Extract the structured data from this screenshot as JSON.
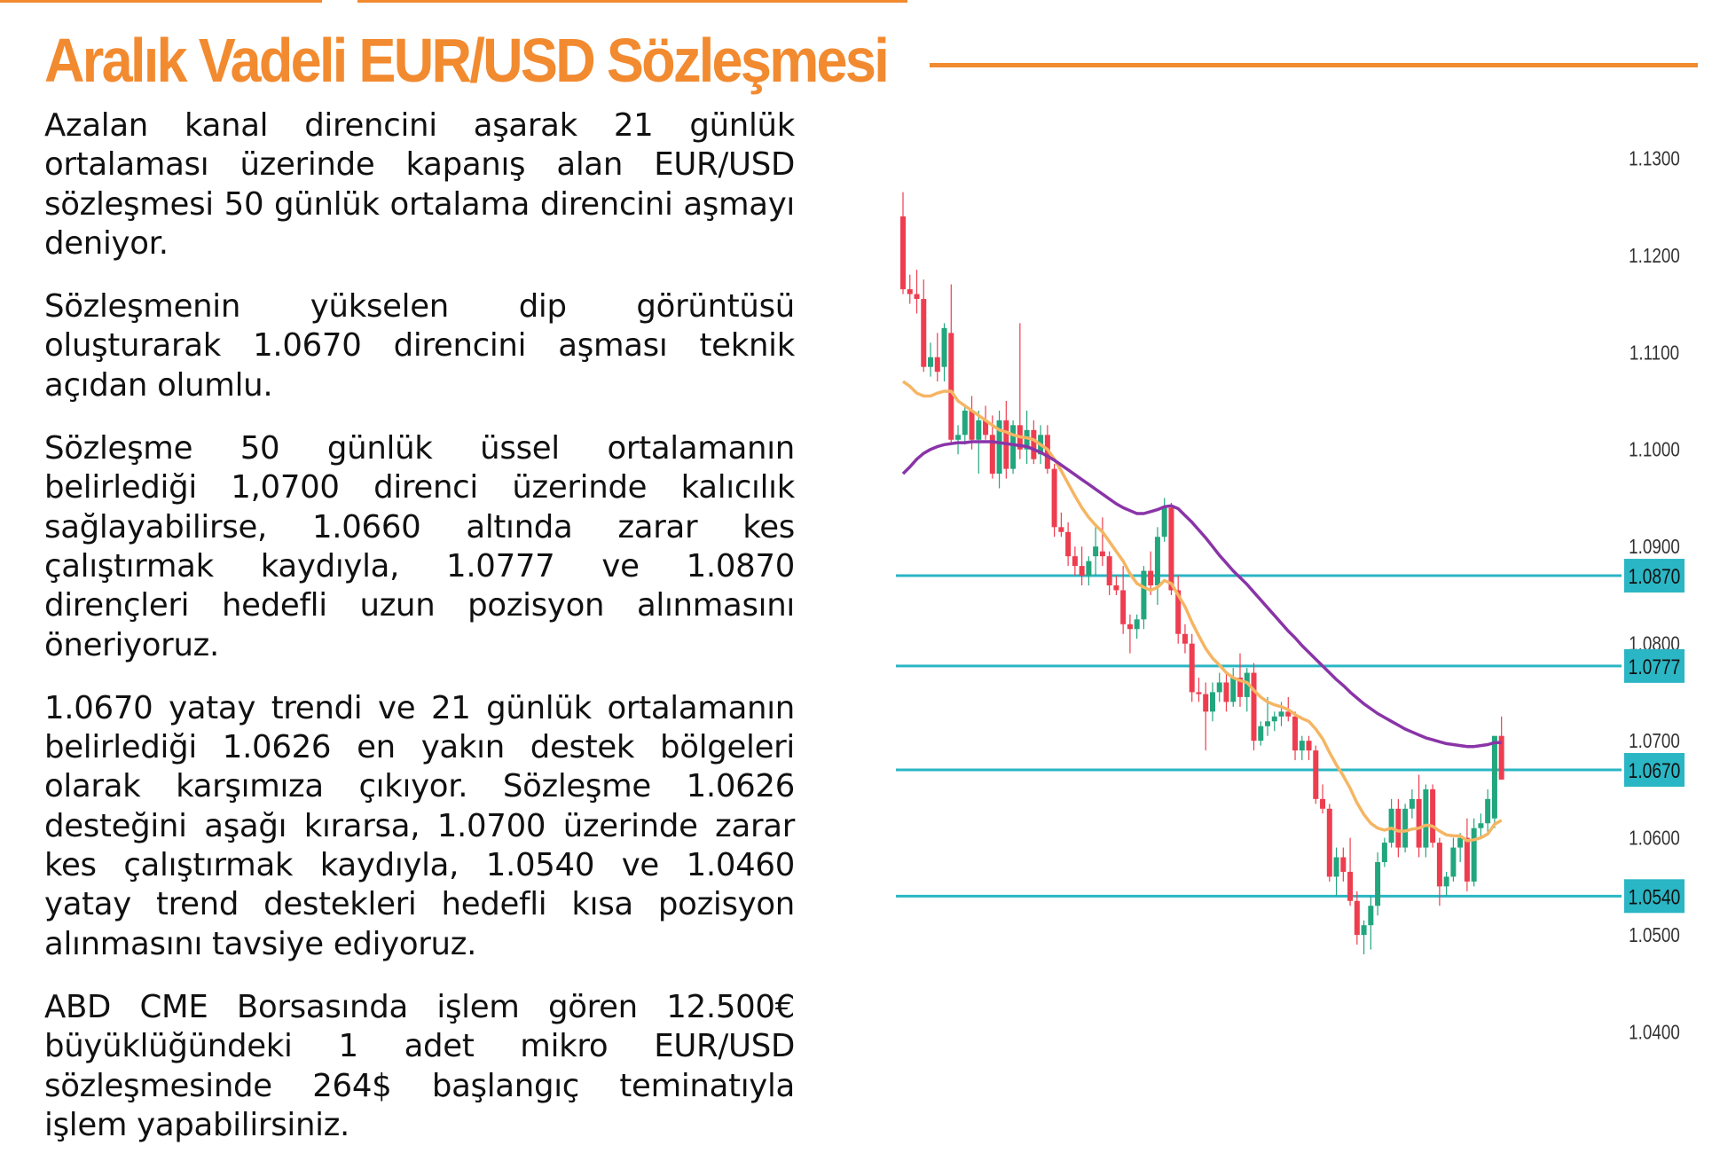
{
  "header": {
    "title": "Aralık Vadeli EUR/USD Sözleşmesi",
    "accent_color": "#f28a30"
  },
  "paragraphs": [
    "Azalan kanal direncini aşarak 21 günlük ortalaması üzerinde kapanış alan EUR/USD sözleşmesi 50 günlük ortalama direncini aşmayı deniyor.",
    "Sözleşmenin yükselen dip görüntüsü oluşturarak 1.0670 direncini aşması teknik açıdan olumlu.",
    "Sözleşme 50 günlük üssel ortalamanın belirlediği 1,0700 direnci üzerinde kalıcılık sağlayabilirse, 1.0660 altında zarar kes çalıştırmak kaydıyla, 1.0777 ve 1.0870 dirençleri hedefli uzun pozisyon alınmasını öneriyoruz.",
    "1.0670 yatay trendi ve 21 günlük ortalamanın belirlediği 1.0626 en yakın destek bölgeleri olarak karşımıza çıkıyor. Sözleşme 1.0626 desteğini aşağı kırarsa, 1.0700 üzerinde zarar kes çalıştırmak kaydıyla, 1.0540 ve 1.0460 yatay trend destekleri hedefli kısa pozisyon alınmasını tavsiye ediyoruz.",
    "ABD CME Borsasında işlem gören 12.500€ büyüklüğündeki 1 adet mikro EUR/USD sözleşmesinde 264$ başlangıç teminatıyla işlem yapabilirsiniz."
  ],
  "chart_data": {
    "type": "candlestick",
    "ylim": [
      1.0385,
      1.1335
    ],
    "y_ticks": [
      "1.1300",
      "1.1200",
      "1.1100",
      "1.1000",
      "1.0900",
      "1.0800",
      "1.0700",
      "1.0600",
      "1.0500",
      "1.0400"
    ],
    "levels": [
      {
        "value": 1.087,
        "label": "1.0870"
      },
      {
        "value": 1.0777,
        "label": "1.0777"
      },
      {
        "value": 1.067,
        "label": "1.0670"
      },
      {
        "value": 1.054,
        "label": "1.0540"
      }
    ],
    "colors": {
      "up": "#22a67e",
      "down": "#ee3d4f",
      "ema21": "#f5b563",
      "ema50": "#8a34a8",
      "level": "#2ab6c4",
      "label_bg": "#2ab6c4"
    },
    "candles": [
      [
        1.124,
        1.1265,
        1.116,
        1.1165
      ],
      [
        1.1165,
        1.118,
        1.115,
        1.116
      ],
      [
        1.116,
        1.1185,
        1.114,
        1.1155
      ],
      [
        1.1155,
        1.1175,
        1.108,
        1.1085
      ],
      [
        1.1085,
        1.111,
        1.1075,
        1.1095
      ],
      [
        1.1095,
        1.112,
        1.107,
        1.108
      ],
      [
        1.1085,
        1.113,
        1.107,
        1.1125
      ],
      [
        1.112,
        1.117,
        1.1005,
        1.101
      ],
      [
        1.101,
        1.1025,
        1.0995,
        1.1015
      ],
      [
        1.1015,
        1.1045,
        1.1005,
        1.104
      ],
      [
        1.104,
        1.1055,
        1.1,
        1.101
      ],
      [
        1.101,
        1.104,
        1.0975,
        1.103
      ],
      [
        1.103,
        1.1045,
        1.101,
        1.1015
      ],
      [
        1.1015,
        1.1035,
        1.097,
        1.0975
      ],
      [
        1.0975,
        1.104,
        1.096,
        1.103
      ],
      [
        1.103,
        1.105,
        1.097,
        1.098
      ],
      [
        1.098,
        1.103,
        1.0975,
        1.1025
      ],
      [
        1.1025,
        1.113,
        1.099,
        1.1
      ],
      [
        1.1,
        1.104,
        1.0985,
        1.102
      ],
      [
        1.102,
        1.103,
        1.0985,
        1.099
      ],
      [
        1.0995,
        1.1025,
        1.0985,
        1.1015
      ],
      [
        1.1015,
        1.1025,
        1.0975,
        1.098
      ],
      [
        1.098,
        1.0985,
        1.091,
        1.092
      ],
      [
        1.092,
        1.0935,
        1.091,
        1.0915
      ],
      [
        1.0915,
        1.0925,
        1.088,
        1.089
      ],
      [
        1.089,
        1.09,
        1.087,
        1.088
      ],
      [
        1.088,
        1.09,
        1.086,
        1.087
      ],
      [
        1.087,
        1.089,
        1.086,
        1.0885
      ],
      [
        1.089,
        1.092,
        1.087,
        1.09
      ],
      [
        1.0895,
        1.093,
        1.088,
        1.089
      ],
      [
        1.089,
        1.0895,
        1.085,
        1.086
      ],
      [
        1.086,
        1.087,
        1.085,
        1.0855
      ],
      [
        1.0855,
        1.088,
        1.081,
        1.082
      ],
      [
        1.082,
        1.083,
        1.079,
        1.0815
      ],
      [
        1.0815,
        1.083,
        1.0805,
        1.0825
      ],
      [
        1.0825,
        1.088,
        1.0815,
        1.0875
      ],
      [
        1.0875,
        1.0895,
        1.085,
        1.086
      ],
      [
        1.086,
        1.092,
        1.084,
        1.091
      ],
      [
        1.091,
        1.095,
        1.0905,
        1.094
      ],
      [
        1.094,
        1.0945,
        1.085,
        1.0855
      ],
      [
        1.0855,
        1.087,
        1.08,
        1.081
      ],
      [
        1.081,
        1.082,
        1.079,
        1.08
      ],
      [
        1.08,
        1.081,
        1.074,
        1.075
      ],
      [
        1.075,
        1.0765,
        1.074,
        1.0748
      ],
      [
        1.0748,
        1.076,
        1.069,
        1.073
      ],
      [
        1.073,
        1.076,
        1.072,
        1.075
      ],
      [
        1.075,
        1.077,
        1.074,
        1.076
      ],
      [
        1.076,
        1.077,
        1.073,
        1.074
      ],
      [
        1.074,
        1.0775,
        1.0735,
        1.0765
      ],
      [
        1.0765,
        1.079,
        1.0735,
        1.0745
      ],
      [
        1.0745,
        1.0775,
        1.073,
        1.077
      ],
      [
        1.077,
        1.078,
        1.069,
        1.07
      ],
      [
        1.07,
        1.072,
        1.0695,
        1.0715
      ],
      [
        1.0715,
        1.0745,
        1.0705,
        1.072
      ],
      [
        1.072,
        1.073,
        1.071,
        1.0725
      ],
      [
        1.0725,
        1.074,
        1.0715,
        1.073
      ],
      [
        1.073,
        1.0745,
        1.072,
        1.0725
      ],
      [
        1.0725,
        1.073,
        1.068,
        1.069
      ],
      [
        1.069,
        1.0705,
        1.068,
        1.07
      ],
      [
        1.07,
        1.0705,
        1.068,
        1.069
      ],
      [
        1.069,
        1.0695,
        1.0635,
        1.064
      ],
      [
        1.064,
        1.0655,
        1.0625,
        1.063
      ],
      [
        1.063,
        1.0635,
        1.0555,
        1.056
      ],
      [
        1.056,
        1.059,
        1.054,
        1.058
      ],
      [
        1.058,
        1.059,
        1.0555,
        1.0565
      ],
      [
        1.0565,
        1.06,
        1.053,
        1.0535
      ],
      [
        1.0535,
        1.0545,
        1.049,
        1.05
      ],
      [
        1.05,
        1.0515,
        1.048,
        1.051
      ],
      [
        1.051,
        1.054,
        1.0485,
        1.053
      ],
      [
        1.053,
        1.0585,
        1.052,
        1.0575
      ],
      [
        1.0575,
        1.06,
        1.057,
        1.0595
      ],
      [
        1.0595,
        1.064,
        1.059,
        1.063
      ],
      [
        1.063,
        1.064,
        1.058,
        1.059
      ],
      [
        1.059,
        1.0635,
        1.0585,
        1.063
      ],
      [
        1.063,
        1.065,
        1.062,
        1.064
      ],
      [
        1.064,
        1.0665,
        1.058,
        1.059
      ],
      [
        1.059,
        1.0655,
        1.058,
        1.065
      ],
      [
        1.065,
        1.0655,
        1.059,
        1.0595
      ],
      [
        1.0595,
        1.06,
        1.053,
        1.055
      ],
      [
        1.055,
        1.0565,
        1.054,
        1.056
      ],
      [
        1.056,
        1.06,
        1.0555,
        1.059
      ],
      [
        1.059,
        1.0605,
        1.0575,
        1.06
      ],
      [
        1.06,
        1.062,
        1.0545,
        1.0555
      ],
      [
        1.0555,
        1.062,
        1.055,
        1.061
      ],
      [
        1.061,
        1.0625,
        1.06,
        1.0615
      ],
      [
        1.0615,
        1.065,
        1.0605,
        1.064
      ],
      [
        1.062,
        1.07,
        1.061,
        1.0705
      ],
      [
        1.0705,
        1.0725,
        1.066,
        1.066
      ]
    ],
    "ema21": [
      1.107,
      1.1065,
      1.1058,
      1.1055,
      1.1055,
      1.1058,
      1.106,
      1.106,
      1.105,
      1.1045,
      1.104,
      1.1035,
      1.103,
      1.1025,
      1.102,
      1.1018,
      1.1015,
      1.1013,
      1.1012,
      1.101,
      1.1005,
      1.1,
      1.099,
      1.0978,
      1.0965,
      1.0952,
      1.094,
      1.093,
      1.0922,
      1.0915,
      1.0905,
      1.0895,
      1.0885,
      1.0872,
      1.0862,
      1.0858,
      1.0855,
      1.0858,
      1.0865,
      1.0862,
      1.085,
      1.0838,
      1.0822,
      1.0808,
      1.0795,
      1.0785,
      1.0778,
      1.077,
      1.0765,
      1.0762,
      1.076,
      1.0752,
      1.0745,
      1.074,
      1.0737,
      1.0735,
      1.0732,
      1.0727,
      1.0723,
      1.072,
      1.0712,
      1.0702,
      1.0688,
      1.0675,
      1.0664,
      1.0651,
      1.0636,
      1.0624,
      1.0615,
      1.061,
      1.0608,
      1.061,
      1.0607,
      1.0607,
      1.0609,
      1.061,
      1.0613,
      1.0612,
      1.0607,
      1.0603,
      1.0602,
      1.0602,
      1.0597,
      1.0598,
      1.06,
      1.0604,
      1.0614,
      1.0618
    ],
    "ema50": [
      1.0975,
      1.0982,
      1.099,
      1.0996,
      1.1,
      1.1003,
      1.1005,
      1.1006,
      1.1007,
      1.1007,
      1.1008,
      1.1008,
      1.1008,
      1.1008,
      1.1007,
      1.1006,
      1.1005,
      1.1004,
      1.1003,
      1.1,
      1.0997,
      1.0993,
      1.0989,
      1.0984,
      1.0979,
      1.0974,
      1.0969,
      1.0964,
      1.0959,
      1.0954,
      1.0949,
      1.0944,
      1.094,
      1.0937,
      1.0934,
      1.0934,
      1.0936,
      1.0938,
      1.0941,
      1.0942,
      1.0939,
      1.0932,
      1.0925,
      1.0917,
      1.0909,
      1.09,
      1.0891,
      1.0883,
      1.0875,
      1.0868,
      1.0861,
      1.0853,
      1.0845,
      1.0837,
      1.0829,
      1.0821,
      1.0813,
      1.0806,
      1.0798,
      1.0791,
      1.0784,
      1.0777,
      1.077,
      1.0763,
      1.0757,
      1.075,
      1.0744,
      1.0738,
      1.0733,
      1.0728,
      1.0724,
      1.072,
      1.0716,
      1.0712,
      1.0709,
      1.0706,
      1.0703,
      1.0701,
      1.0699,
      1.0697,
      1.0696,
      1.0695,
      1.0694,
      1.0694,
      1.0695,
      1.0696,
      1.0698,
      1.0698
    ]
  }
}
